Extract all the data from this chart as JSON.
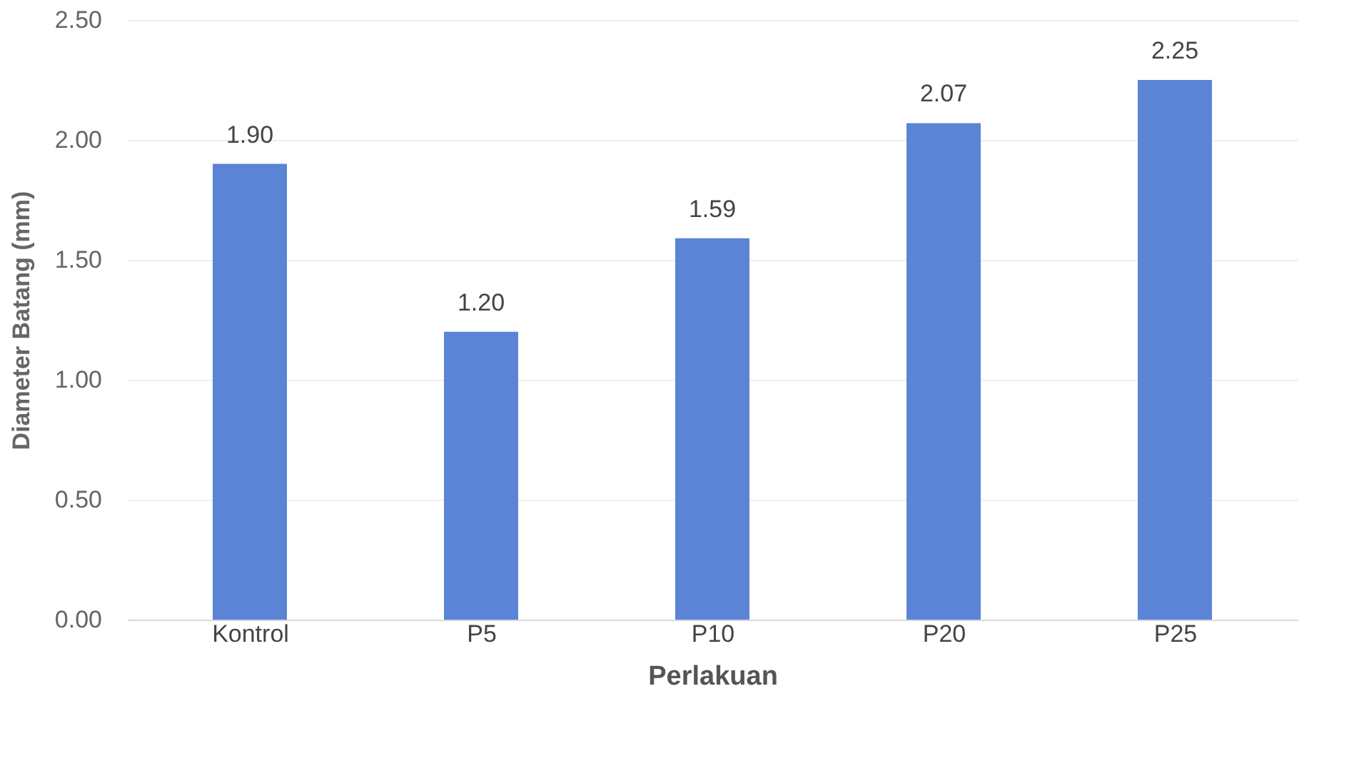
{
  "chart_data": {
    "type": "bar",
    "xlabel": "Perlakuan",
    "ylabel": "Diameter Batang (mm)",
    "categories": [
      "Kontrol",
      "P5",
      "P10",
      "P20",
      "P25"
    ],
    "values": [
      1.9,
      1.2,
      1.59,
      2.07,
      2.25
    ],
    "value_labels": [
      "1.90",
      "1.20",
      "1.59",
      "2.07",
      "2.25"
    ],
    "color": "#5b84d6",
    "ylim": [
      0,
      2.5
    ],
    "yticks": [
      {
        "value": 0,
        "label": "0.00"
      },
      {
        "value": 0.5,
        "label": "0.50"
      },
      {
        "value": 1,
        "label": "1.00"
      },
      {
        "value": 1.5,
        "label": "1.50"
      },
      {
        "value": 2,
        "label": "2.00"
      },
      {
        "value": 2.5,
        "label": "2.50"
      }
    ],
    "grid": "y"
  }
}
